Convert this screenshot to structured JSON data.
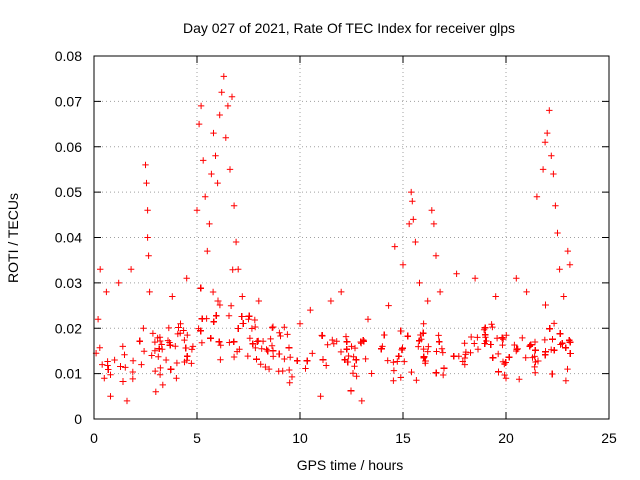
{
  "chart_data": {
    "type": "scatter",
    "title": "Day 027 of 2021, Rate Of TEC Index for receiver glps",
    "xlabel": "GPS time / hours",
    "ylabel": "ROTI / TECUs",
    "xlim": [
      0,
      25
    ],
    "ylim": [
      0,
      0.08
    ],
    "xticks": [
      0,
      5,
      10,
      15,
      20,
      25
    ],
    "xtick_labels": [
      "0",
      "5",
      "10",
      "15",
      "20",
      "25"
    ],
    "yticks": [
      0,
      0.01,
      0.02,
      0.03,
      0.04,
      0.05,
      0.06,
      0.07,
      0.08
    ],
    "ytick_labels": [
      "0",
      "0.01",
      "0.02",
      "0.03",
      "0.04",
      "0.05",
      "0.06",
      "0.07",
      "0.08"
    ],
    "grid": true,
    "marker": "+",
    "color": "#ff0000",
    "data_gaps_hours": [
      [
        1.95,
        2.2
      ],
      [
        13.55,
        13.95
      ],
      [
        17.05,
        17.45
      ],
      [
        23.25,
        25
      ]
    ],
    "series": [
      {
        "name": "ROTI",
        "points": [
          [
            0.1,
            0.0145
          ],
          [
            0.2,
            0.022
          ],
          [
            0.3,
            0.033
          ],
          [
            0.4,
            0.012
          ],
          [
            0.5,
            0.009
          ],
          [
            0.6,
            0.028
          ],
          [
            0.8,
            0.005
          ],
          [
            1.0,
            0.013
          ],
          [
            1.2,
            0.03
          ],
          [
            1.4,
            0.016
          ],
          [
            1.6,
            0.004
          ],
          [
            1.8,
            0.033
          ],
          [
            2.3,
            0.012
          ],
          [
            2.4,
            0.02
          ],
          [
            2.5,
            0.056
          ],
          [
            2.55,
            0.052
          ],
          [
            2.6,
            0.046
          ],
          [
            2.6,
            0.04
          ],
          [
            2.65,
            0.036
          ],
          [
            2.7,
            0.028
          ],
          [
            2.8,
            0.014
          ],
          [
            3.0,
            0.006
          ],
          [
            3.2,
            0.018
          ],
          [
            3.5,
            0.013
          ],
          [
            3.8,
            0.027
          ],
          [
            4.0,
            0.009
          ],
          [
            4.2,
            0.021
          ],
          [
            4.5,
            0.031
          ],
          [
            4.8,
            0.016
          ],
          [
            5.0,
            0.046
          ],
          [
            5.1,
            0.065
          ],
          [
            5.2,
            0.069
          ],
          [
            5.3,
            0.057
          ],
          [
            5.4,
            0.049
          ],
          [
            5.5,
            0.037
          ],
          [
            5.6,
            0.043
          ],
          [
            5.7,
            0.054
          ],
          [
            5.8,
            0.063
          ],
          [
            5.9,
            0.058
          ],
          [
            6.0,
            0.052
          ],
          [
            6.1,
            0.067
          ],
          [
            6.2,
            0.072
          ],
          [
            6.3,
            0.0755
          ],
          [
            6.4,
            0.062
          ],
          [
            6.5,
            0.069
          ],
          [
            6.6,
            0.055
          ],
          [
            6.7,
            0.071
          ],
          [
            6.8,
            0.047
          ],
          [
            6.9,
            0.039
          ],
          [
            7.0,
            0.033
          ],
          [
            7.2,
            0.027
          ],
          [
            7.5,
            0.022
          ],
          [
            8.0,
            0.026
          ],
          [
            8.5,
            0.011
          ],
          [
            9.0,
            0.019
          ],
          [
            9.5,
            0.008
          ],
          [
            10.0,
            0.021
          ],
          [
            10.5,
            0.024
          ],
          [
            11.0,
            0.005
          ],
          [
            11.5,
            0.026
          ],
          [
            12.0,
            0.028
          ],
          [
            12.5,
            0.016
          ],
          [
            13.0,
            0.004
          ],
          [
            13.3,
            0.022
          ],
          [
            14.0,
            0.016
          ],
          [
            14.3,
            0.025
          ],
          [
            14.6,
            0.038
          ],
          [
            15.0,
            0.034
          ],
          [
            15.3,
            0.043
          ],
          [
            15.4,
            0.05
          ],
          [
            15.45,
            0.048
          ],
          [
            15.5,
            0.044
          ],
          [
            15.6,
            0.039
          ],
          [
            15.8,
            0.03
          ],
          [
            16.0,
            0.021
          ],
          [
            16.2,
            0.026
          ],
          [
            16.4,
            0.046
          ],
          [
            16.5,
            0.043
          ],
          [
            16.6,
            0.036
          ],
          [
            16.8,
            0.028
          ],
          [
            17.6,
            0.032
          ],
          [
            18.0,
            0.012
          ],
          [
            18.5,
            0.031
          ],
          [
            19.0,
            0.018
          ],
          [
            19.5,
            0.027
          ],
          [
            20.0,
            0.009
          ],
          [
            20.5,
            0.031
          ],
          [
            21.0,
            0.028
          ],
          [
            21.5,
            0.049
          ],
          [
            21.8,
            0.055
          ],
          [
            21.9,
            0.061
          ],
          [
            22.0,
            0.063
          ],
          [
            22.1,
            0.068
          ],
          [
            22.2,
            0.058
          ],
          [
            22.3,
            0.054
          ],
          [
            22.4,
            0.047
          ],
          [
            22.5,
            0.041
          ],
          [
            22.6,
            0.033
          ],
          [
            22.8,
            0.027
          ],
          [
            23.0,
            0.037
          ],
          [
            23.1,
            0.034
          ]
        ],
        "profile_hours": [
          0,
          0.5,
          1,
          1.5,
          1.95,
          2.2,
          2.5,
          3,
          3.5,
          4,
          4.5,
          5,
          5.5,
          6,
          6.5,
          7,
          7.5,
          8,
          9,
          10,
          11,
          12,
          13,
          13.55,
          13.95,
          14.5,
          15,
          15.5,
          16,
          16.5,
          17.05,
          17.45,
          18,
          19,
          20,
          21,
          22,
          22.5,
          23,
          23.25
        ],
        "profile_median": [
          0.0125,
          0.0125,
          0.012,
          0.0125,
          0.013,
          0.0135,
          0.0145,
          0.014,
          0.0145,
          0.015,
          0.016,
          0.018,
          0.021,
          0.024,
          0.021,
          0.018,
          0.017,
          0.016,
          0.015,
          0.014,
          0.014,
          0.0135,
          0.0135,
          0.0135,
          0.014,
          0.0145,
          0.015,
          0.0145,
          0.014,
          0.014,
          0.0135,
          0.0135,
          0.014,
          0.0145,
          0.0145,
          0.015,
          0.015,
          0.015,
          0.0145,
          0.0145
        ],
        "profile_spread": [
          0.005,
          0.005,
          0.005,
          0.005,
          0.005,
          0.006,
          0.006,
          0.006,
          0.006,
          0.006,
          0.007,
          0.008,
          0.011,
          0.014,
          0.012,
          0.009,
          0.007,
          0.006,
          0.006,
          0.006,
          0.006,
          0.006,
          0.006,
          0.006,
          0.006,
          0.006,
          0.007,
          0.007,
          0.007,
          0.007,
          0.006,
          0.006,
          0.006,
          0.006,
          0.006,
          0.007,
          0.008,
          0.008,
          0.007,
          0.006
        ]
      }
    ]
  }
}
